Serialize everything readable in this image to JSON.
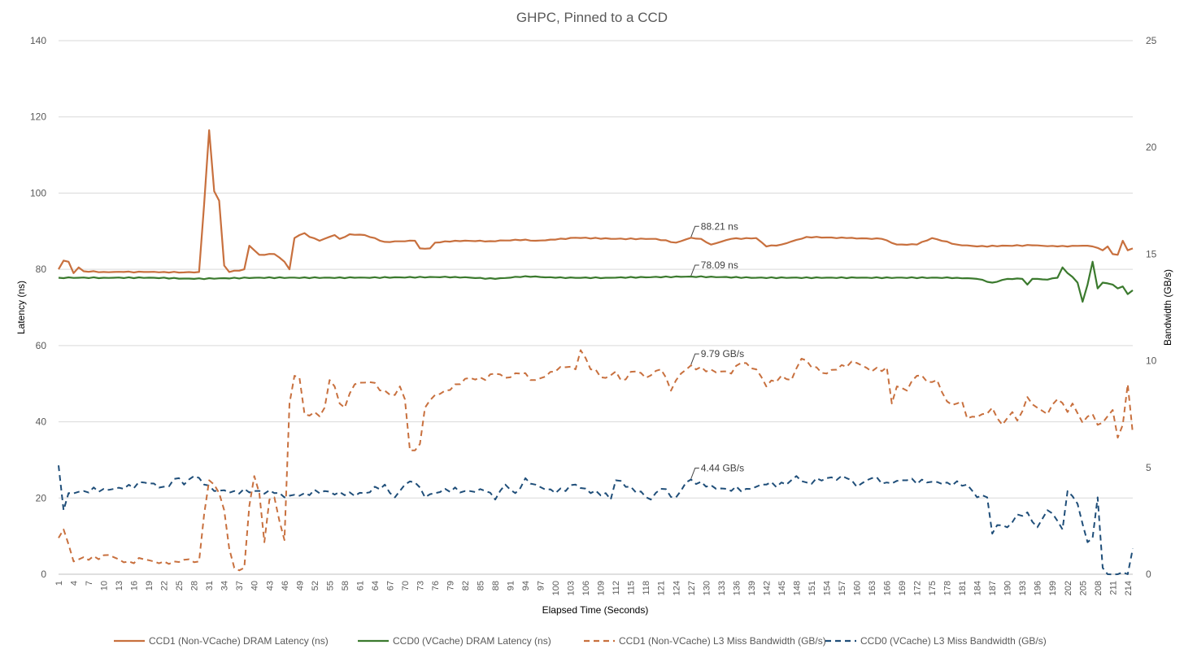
{
  "chart_data": {
    "type": "line",
    "title": "GHPC, Pinned to a CCD",
    "xlabel": "Elapsed Time (Seconds)",
    "ylabel_left": "Latency (ns)",
    "ylabel_right": "Bandwidth (GB/s)",
    "x_start": 1,
    "x_end": 214,
    "x_tick_step": 3,
    "ylim_left": [
      0,
      140
    ],
    "yticks_left": [
      0,
      20,
      40,
      60,
      80,
      100,
      120,
      140
    ],
    "ylim_right": [
      0,
      25
    ],
    "yticks_right": [
      0,
      5,
      10,
      15,
      20,
      25
    ],
    "grid": true,
    "legend_position": "bottom",
    "series": [
      {
        "name": "CCD1 (Non-VCache) DRAM Latency (ns)",
        "axis": "left",
        "style": "solid",
        "color": "#C8703E",
        "keypoints": [
          [
            1,
            80
          ],
          [
            2,
            82.3
          ],
          [
            3,
            82
          ],
          [
            4,
            79
          ],
          [
            5,
            80.5
          ],
          [
            6,
            79.5
          ],
          [
            10,
            79.3
          ],
          [
            14,
            79.3
          ],
          [
            18,
            79.3
          ],
          [
            22,
            79.3
          ],
          [
            26,
            79.2
          ],
          [
            29,
            79.3
          ],
          [
            30,
            97
          ],
          [
            31,
            116.5
          ],
          [
            32,
            100.5
          ],
          [
            33,
            98
          ],
          [
            34,
            81
          ],
          [
            35,
            79.3
          ],
          [
            38,
            80
          ],
          [
            39,
            86.2
          ],
          [
            40,
            85
          ],
          [
            41,
            83.8
          ],
          [
            44,
            84
          ],
          [
            46,
            82
          ],
          [
            47,
            80
          ],
          [
            48,
            88.2
          ],
          [
            49,
            89
          ],
          [
            50,
            89.5
          ],
          [
            51,
            88.5
          ],
          [
            53,
            87.5
          ],
          [
            56,
            89
          ],
          [
            57,
            88
          ],
          [
            59,
            89.2
          ],
          [
            62,
            89
          ],
          [
            66,
            87.2
          ],
          [
            72,
            87.5
          ],
          [
            73,
            85.5
          ],
          [
            75,
            85.5
          ],
          [
            76,
            87
          ],
          [
            80,
            87.5
          ],
          [
            87,
            87.4
          ],
          [
            94,
            87.8
          ],
          [
            96,
            87.5
          ],
          [
            100,
            87.8
          ],
          [
            104,
            88.3
          ],
          [
            112,
            88
          ],
          [
            120,
            88
          ],
          [
            124,
            87
          ],
          [
            127,
            88.3
          ],
          [
            129,
            88
          ],
          [
            131,
            86.5
          ],
          [
            135,
            88
          ],
          [
            140,
            88.2
          ],
          [
            142,
            86
          ],
          [
            145,
            86.5
          ],
          [
            150,
            88.5
          ],
          [
            158,
            88.2
          ],
          [
            165,
            88
          ],
          [
            168,
            86.5
          ],
          [
            172,
            86.5
          ],
          [
            175,
            88.2
          ],
          [
            180,
            86.5
          ],
          [
            184,
            86
          ],
          [
            190,
            86.2
          ],
          [
            195,
            86.3
          ],
          [
            200,
            86
          ],
          [
            205,
            86.2
          ],
          [
            207,
            86
          ],
          [
            209,
            85
          ],
          [
            210,
            86
          ],
          [
            211,
            84
          ],
          [
            212,
            83.8
          ],
          [
            213,
            87.5
          ],
          [
            214,
            85
          ],
          [
            215,
            85.5
          ]
        ],
        "annotation": {
          "x": 127,
          "text": "88.21 ns"
        }
      },
      {
        "name": "CCD0 (VCache) DRAM Latency (ns)",
        "axis": "left",
        "style": "solid",
        "color": "#3B7A2E",
        "keypoints": [
          [
            1,
            77.8
          ],
          [
            10,
            77.8
          ],
          [
            20,
            77.8
          ],
          [
            28,
            77.5
          ],
          [
            40,
            77.8
          ],
          [
            60,
            77.8
          ],
          [
            80,
            78
          ],
          [
            88,
            77.5
          ],
          [
            94,
            78.2
          ],
          [
            100,
            77.8
          ],
          [
            110,
            77.8
          ],
          [
            127,
            78.1
          ],
          [
            140,
            77.8
          ],
          [
            160,
            77.8
          ],
          [
            180,
            77.8
          ],
          [
            184,
            77.5
          ],
          [
            187,
            76.5
          ],
          [
            190,
            77.5
          ],
          [
            193,
            77.5
          ],
          [
            194,
            76
          ],
          [
            195,
            77.5
          ],
          [
            198,
            77.3
          ],
          [
            200,
            77.8
          ],
          [
            201,
            80.5
          ],
          [
            202,
            79
          ],
          [
            203,
            78
          ],
          [
            204,
            76.5
          ],
          [
            205,
            71.5
          ],
          [
            206,
            76
          ],
          [
            207,
            82
          ],
          [
            208,
            75
          ],
          [
            209,
            76.5
          ],
          [
            211,
            76
          ],
          [
            212,
            75
          ],
          [
            213,
            75.5
          ],
          [
            214,
            73.5
          ],
          [
            215,
            74.5
          ]
        ],
        "annotation": {
          "x": 127,
          "text": "78.09 ns"
        }
      },
      {
        "name": "CCD1 (Non-VCache) L3 Miss Bandwidth (GB/s)",
        "axis": "right",
        "style": "dashed",
        "color": "#C8703E",
        "keypoints": [
          [
            1,
            1.7
          ],
          [
            2,
            2.1
          ],
          [
            3,
            1.4
          ],
          [
            4,
            0.6
          ],
          [
            6,
            0.8
          ],
          [
            9,
            0.7
          ],
          [
            11,
            0.9
          ],
          [
            13,
            0.7
          ],
          [
            15,
            0.6
          ],
          [
            18,
            0.7
          ],
          [
            20,
            0.6
          ],
          [
            22,
            0.6
          ],
          [
            24,
            0.6
          ],
          [
            27,
            0.7
          ],
          [
            29,
            0.6
          ],
          [
            30,
            2.8
          ],
          [
            31,
            4.4
          ],
          [
            32,
            4.2
          ],
          [
            33,
            3.8
          ],
          [
            34,
            3
          ],
          [
            35,
            1.2
          ],
          [
            36,
            0.3
          ],
          [
            38,
            0.3
          ],
          [
            39,
            3.2
          ],
          [
            40,
            4.6
          ],
          [
            41,
            3.8
          ],
          [
            42,
            1.5
          ],
          [
            43,
            3.5
          ],
          [
            44,
            3.6
          ],
          [
            45,
            2.5
          ],
          [
            46,
            1.6
          ],
          [
            47,
            8
          ],
          [
            48,
            9.3
          ],
          [
            49,
            9.2
          ],
          [
            50,
            7.5
          ],
          [
            52,
            7.6
          ],
          [
            53,
            7.4
          ],
          [
            54,
            7.8
          ],
          [
            55,
            9.1
          ],
          [
            56,
            8.8
          ],
          [
            57,
            8
          ],
          [
            58,
            7.8
          ],
          [
            60,
            8.9
          ],
          [
            63,
            9
          ],
          [
            66,
            8.6
          ],
          [
            68,
            8.4
          ],
          [
            69,
            8.8
          ],
          [
            70,
            8.2
          ],
          [
            71,
            5.8
          ],
          [
            72,
            5.8
          ],
          [
            73,
            6.1
          ],
          [
            74,
            7.8
          ],
          [
            76,
            8.4
          ],
          [
            78,
            8.6
          ],
          [
            80,
            8.9
          ],
          [
            83,
            9.2
          ],
          [
            86,
            9.1
          ],
          [
            88,
            9.4
          ],
          [
            90,
            9.2
          ],
          [
            93,
            9.4
          ],
          [
            96,
            9.1
          ],
          [
            100,
            9.5
          ],
          [
            102,
            9.7
          ],
          [
            104,
            9.6
          ],
          [
            105,
            10.5
          ],
          [
            107,
            9.6
          ],
          [
            110,
            9.2
          ],
          [
            112,
            9.5
          ],
          [
            113,
            9.1
          ],
          [
            116,
            9.5
          ],
          [
            118,
            9.2
          ],
          [
            121,
            9.6
          ],
          [
            123,
            8.6
          ],
          [
            125,
            9.4
          ],
          [
            127,
            9.79
          ],
          [
            130,
            9.5
          ],
          [
            133,
            9.5
          ],
          [
            135,
            9.4
          ],
          [
            137,
            9.9
          ],
          [
            140,
            9.6
          ],
          [
            142,
            8.8
          ],
          [
            145,
            9.3
          ],
          [
            147,
            9.1
          ],
          [
            149,
            10.1
          ],
          [
            151,
            9.7
          ],
          [
            154,
            9.4
          ],
          [
            157,
            9.8
          ],
          [
            160,
            9.9
          ],
          [
            163,
            9.5
          ],
          [
            166,
            9.7
          ],
          [
            167,
            8
          ],
          [
            168,
            8.8
          ],
          [
            170,
            8.6
          ],
          [
            172,
            9.3
          ],
          [
            175,
            9
          ],
          [
            176,
            9.1
          ],
          [
            178,
            8.1
          ],
          [
            180,
            8
          ],
          [
            181,
            8.1
          ],
          [
            182,
            7.3
          ],
          [
            185,
            7.5
          ],
          [
            187,
            7.8
          ],
          [
            189,
            7
          ],
          [
            191,
            7.6
          ],
          [
            192,
            7.2
          ],
          [
            194,
            8.3
          ],
          [
            196,
            7.8
          ],
          [
            198,
            7.5
          ],
          [
            200,
            8.2
          ],
          [
            202,
            7.6
          ],
          [
            203,
            8
          ],
          [
            205,
            7.1
          ],
          [
            207,
            7.5
          ],
          [
            208,
            7
          ],
          [
            210,
            7.4
          ],
          [
            211,
            7.7
          ],
          [
            212,
            6.4
          ],
          [
            213,
            7
          ],
          [
            214,
            8.9
          ],
          [
            215,
            6.6
          ]
        ],
        "annotation": {
          "x": 127,
          "text": "9.79 GB/s"
        }
      },
      {
        "name": "CCD0 (VCache) L3 Miss Bandwidth (GB/s)",
        "axis": "right",
        "style": "dashed",
        "color": "#1F4E79",
        "keypoints": [
          [
            1,
            5.1
          ],
          [
            2,
            3
          ],
          [
            3,
            3.8
          ],
          [
            6,
            3.9
          ],
          [
            10,
            4
          ],
          [
            14,
            4
          ],
          [
            18,
            4.3
          ],
          [
            22,
            4.1
          ],
          [
            25,
            4.5
          ],
          [
            26,
            4.2
          ],
          [
            28,
            4.6
          ],
          [
            30,
            4.2
          ],
          [
            32,
            3.9
          ],
          [
            36,
            3.9
          ],
          [
            40,
            3.9
          ],
          [
            44,
            3.8
          ],
          [
            46,
            3.6
          ],
          [
            50,
            3.8
          ],
          [
            54,
            3.9
          ],
          [
            58,
            3.7
          ],
          [
            62,
            3.8
          ],
          [
            66,
            4.2
          ],
          [
            68,
            3.6
          ],
          [
            70,
            4.2
          ],
          [
            72,
            4.3
          ],
          [
            74,
            3.6
          ],
          [
            78,
            4
          ],
          [
            82,
            3.9
          ],
          [
            86,
            3.9
          ],
          [
            88,
            3.5
          ],
          [
            90,
            4.2
          ],
          [
            92,
            3.8
          ],
          [
            94,
            4.5
          ],
          [
            96,
            4.2
          ],
          [
            100,
            3.8
          ],
          [
            104,
            4.2
          ],
          [
            107,
            3.8
          ],
          [
            110,
            3.8
          ],
          [
            111,
            3.5
          ],
          [
            112,
            4.4
          ],
          [
            115,
            4.1
          ],
          [
            119,
            3.5
          ],
          [
            121,
            4
          ],
          [
            124,
            3.6
          ],
          [
            126,
            4.3
          ],
          [
            127,
            4.44
          ],
          [
            130,
            4.1
          ],
          [
            134,
            4
          ],
          [
            138,
            4
          ],
          [
            142,
            4.2
          ],
          [
            146,
            4.2
          ],
          [
            148,
            4.6
          ],
          [
            150,
            4.3
          ],
          [
            154,
            4.5
          ],
          [
            158,
            4.5
          ],
          [
            160,
            4.1
          ],
          [
            163,
            4.5
          ],
          [
            166,
            4.3
          ],
          [
            170,
            4.4
          ],
          [
            174,
            4.3
          ],
          [
            178,
            4.3
          ],
          [
            182,
            4.2
          ],
          [
            184,
            3.6
          ],
          [
            186,
            3.6
          ],
          [
            187,
            1.9
          ],
          [
            188,
            2.3
          ],
          [
            190,
            2.2
          ],
          [
            192,
            2.8
          ],
          [
            194,
            2.9
          ],
          [
            196,
            2.2
          ],
          [
            198,
            3
          ],
          [
            200,
            2.5
          ],
          [
            201,
            2.1
          ],
          [
            202,
            3.9
          ],
          [
            204,
            3.3
          ],
          [
            206,
            1.5
          ],
          [
            207,
            1.7
          ],
          [
            208,
            3.6
          ],
          [
            209,
            0.3
          ],
          [
            210,
            0
          ],
          [
            212,
            0
          ],
          [
            214,
            0
          ],
          [
            215,
            1.2
          ]
        ],
        "annotation": {
          "x": 127,
          "text": "4.44 GB/s"
        }
      }
    ]
  }
}
